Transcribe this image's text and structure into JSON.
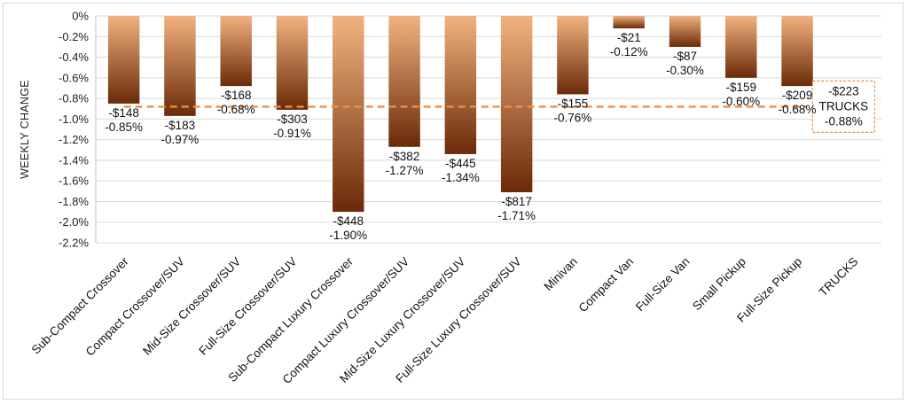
{
  "chart_data": {
    "type": "bar",
    "title": "",
    "xlabel": "",
    "ylabel": "WEEKLY CHANGE",
    "ylim": [
      -2.2,
      0
    ],
    "y_ticks": [
      0,
      -0.2,
      -0.4,
      -0.6,
      -0.8,
      -1.0,
      -1.2,
      -1.4,
      -1.6,
      -1.8,
      -2.0,
      -2.2
    ],
    "y_tick_labels": [
      "0%",
      "-0.2%",
      "-0.4%",
      "-0.6%",
      "-0.8%",
      "-1.0%",
      "-1.2%",
      "-1.4%",
      "-1.6%",
      "-1.8%",
      "-2.0%",
      "-2.2%"
    ],
    "grid": true,
    "categories": [
      "Sub-Compact Crossover",
      "Compact Crossover/SUV",
      "Mid-Size Crossover/SUV",
      "Full-Size Crossover/SUV",
      "Sub-Compact Luxury Crossover",
      "Compact Luxury Crossover/SUV",
      "Mid-Size Luxury Crossover/SUV",
      "Full-Size Luxury Crossover/SUV",
      "Minivan",
      "Compact Van",
      "Full-Size Van",
      "Small Pickup",
      "Full-Size Pickup",
      "TRUCKS"
    ],
    "values": [
      -0.85,
      -0.97,
      -0.68,
      -0.91,
      -1.9,
      -1.27,
      -1.34,
      -1.71,
      -0.76,
      -0.12,
      -0.3,
      -0.6,
      -0.68,
      null
    ],
    "dollar_labels": [
      "-$148",
      "-$183",
      "-$168",
      "-$303",
      "-$448",
      "-$382",
      "-$445",
      "-$817",
      "-$155",
      "-$21",
      "-$87",
      "-$159",
      "-$209"
    ],
    "percent_labels": [
      "-0.85%",
      "-0.97%",
      "-0.68%",
      "-0.91%",
      "-1.90%",
      "-1.27%",
      "-1.34%",
      "-1.71%",
      "-0.76%",
      "-0.12%",
      "-0.30%",
      "-0.60%",
      "-0.68%"
    ],
    "reference_line": {
      "value": -0.88,
      "dollar_label": "-$223",
      "name_label": "TRUCKS",
      "percent_label": "-0.88%",
      "color": "#e8914a"
    },
    "colors": {
      "bar_top": "#f2b27f",
      "bar_bottom": "#6b2a08",
      "grid": "#d9d9d9",
      "axis": "#bfbfbf"
    }
  }
}
